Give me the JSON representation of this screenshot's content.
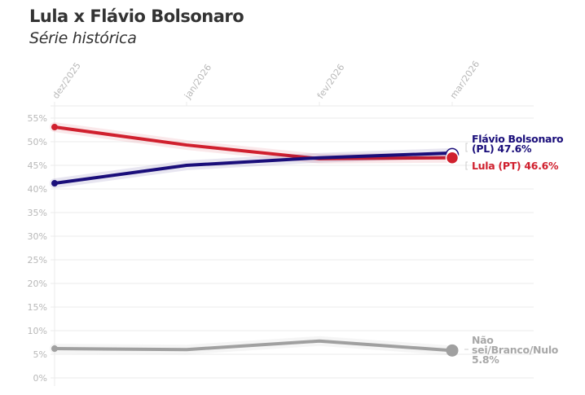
{
  "header": {
    "title": "Lula x Flávio Bolsonaro",
    "subtitle": "Série histórica"
  },
  "chart_data": {
    "type": "line",
    "title": "Lula x Flávio Bolsonaro",
    "subtitle": "Série histórica",
    "xlabel": "",
    "ylabel": "",
    "x": [
      "dez/2025",
      "jan/2026",
      "fev/2026",
      "mar/2026"
    ],
    "y_ticks": [
      "0%",
      "5%",
      "10%",
      "15%",
      "20%",
      "25%",
      "30%",
      "35%",
      "40%",
      "45%",
      "50%",
      "55%"
    ],
    "ylim": [
      0,
      55
    ],
    "grid": true,
    "legend_position": "direct labels at line ends (right)",
    "series": [
      {
        "name": "Lula (PT)",
        "color": "#d0202e",
        "values": [
          53.1,
          49.3,
          46.4,
          46.6
        ],
        "end_label": "Lula (PT) 46.6%"
      },
      {
        "name": "Flávio Bolsonaro (PL)",
        "color": "#1a0e7a",
        "values": [
          41.2,
          45.0,
          46.6,
          47.6
        ],
        "end_label": "Flávio Bolsonaro (PL) 47.6%"
      },
      {
        "name": "Não sei/Branco/Nulo",
        "color": "#a0a0a0",
        "values": [
          6.2,
          6.0,
          7.8,
          5.8
        ],
        "end_label": "Não sei/Branco/Nulo 5.8%"
      }
    ]
  },
  "labels": {
    "flavio_line1": "Flávio Bolsonaro",
    "flavio_line2": "(PL) 47.6%",
    "lula": "Lula (PT) 46.6%",
    "outros_line1": "Não",
    "outros_line2": "sei/Branco/Nulo",
    "outros_line3": "5.8%"
  },
  "colors": {
    "lula": "#d0202e",
    "flavio": "#1a0e7a",
    "outros": "#a0a0a0",
    "grid": "#ebebeb",
    "tick_text": "#b8b8b8"
  }
}
